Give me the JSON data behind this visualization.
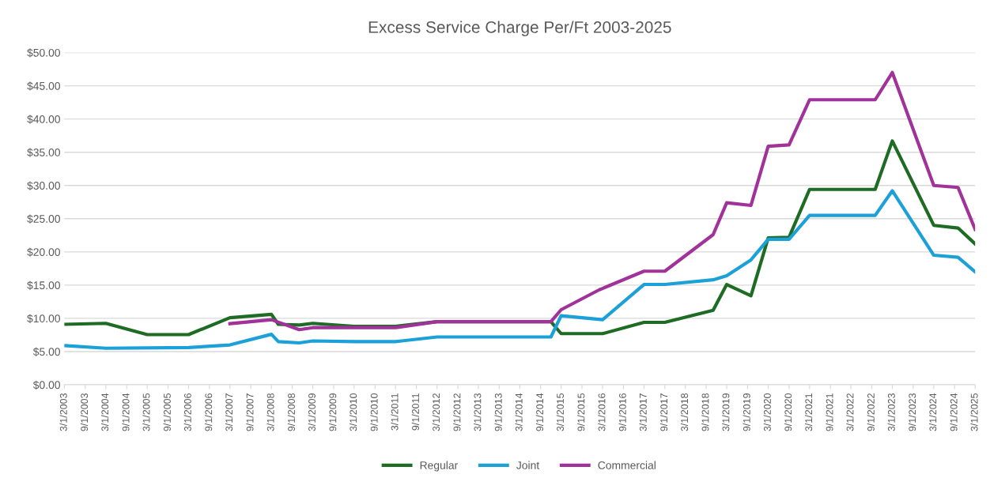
{
  "chart_data": {
    "type": "line",
    "title": "Excess Service Charge Per/Ft 2003-2025",
    "xlim": [
      "2003-03-01",
      "2025-03-01"
    ],
    "xticks": [
      {
        "value": "2003-03-01",
        "label": "3/1/2003"
      },
      {
        "value": "2003-09-01",
        "label": "9/1/2003"
      },
      {
        "value": "2004-03-01",
        "label": "3/1/2004"
      },
      {
        "value": "2004-09-01",
        "label": "9/1/2004"
      },
      {
        "value": "2005-03-01",
        "label": "3/1/2005"
      },
      {
        "value": "2005-09-01",
        "label": "9/1/2005"
      },
      {
        "value": "2006-03-01",
        "label": "3/1/2006"
      },
      {
        "value": "2006-09-01",
        "label": "9/1/2006"
      },
      {
        "value": "2007-03-01",
        "label": "3/1/2007"
      },
      {
        "value": "2007-09-01",
        "label": "9/1/2007"
      },
      {
        "value": "2008-03-01",
        "label": "3/1/2008"
      },
      {
        "value": "2008-09-01",
        "label": "9/1/2008"
      },
      {
        "value": "2009-03-01",
        "label": "3/1/2009"
      },
      {
        "value": "2009-09-01",
        "label": "9/1/2009"
      },
      {
        "value": "2010-03-01",
        "label": "3/1/2010"
      },
      {
        "value": "2010-09-01",
        "label": "9/1/2010"
      },
      {
        "value": "2011-03-01",
        "label": "3/1/2011"
      },
      {
        "value": "2011-09-01",
        "label": "9/1/2011"
      },
      {
        "value": "2012-03-01",
        "label": "3/1/2012"
      },
      {
        "value": "2012-09-01",
        "label": "9/1/2012"
      },
      {
        "value": "2013-03-01",
        "label": "3/1/2013"
      },
      {
        "value": "2013-09-01",
        "label": "9/1/2013"
      },
      {
        "value": "2014-03-01",
        "label": "3/1/2014"
      },
      {
        "value": "2014-09-01",
        "label": "9/1/2014"
      },
      {
        "value": "2015-03-01",
        "label": "3/1/2015"
      },
      {
        "value": "2015-09-01",
        "label": "9/1/2015"
      },
      {
        "value": "2016-03-01",
        "label": "3/1/2016"
      },
      {
        "value": "2016-09-01",
        "label": "9/1/2016"
      },
      {
        "value": "2017-03-01",
        "label": "3/1/2017"
      },
      {
        "value": "2017-09-01",
        "label": "9/1/2017"
      },
      {
        "value": "2018-03-01",
        "label": "3/1/2018"
      },
      {
        "value": "2018-09-01",
        "label": "9/1/2018"
      },
      {
        "value": "2019-03-01",
        "label": "3/1/2019"
      },
      {
        "value": "2019-09-01",
        "label": "9/1/2019"
      },
      {
        "value": "2020-03-01",
        "label": "3/1/2020"
      },
      {
        "value": "2020-09-01",
        "label": "9/1/2020"
      },
      {
        "value": "2021-03-01",
        "label": "3/1/2021"
      },
      {
        "value": "2021-09-01",
        "label": "9/1/2021"
      },
      {
        "value": "2022-03-01",
        "label": "3/1/2022"
      },
      {
        "value": "2022-09-01",
        "label": "9/1/2022"
      },
      {
        "value": "2023-03-01",
        "label": "3/1/2023"
      },
      {
        "value": "2023-09-01",
        "label": "9/1/2023"
      },
      {
        "value": "2024-03-01",
        "label": "3/1/2024"
      },
      {
        "value": "2024-09-01",
        "label": "9/1/2024"
      },
      {
        "value": "2025-03-01",
        "label": "3/1/2025"
      }
    ],
    "ylim": [
      0,
      50
    ],
    "yticks": [
      {
        "value": 0,
        "label": "$0.00"
      },
      {
        "value": 5,
        "label": "$5.00"
      },
      {
        "value": 10,
        "label": "$10.00"
      },
      {
        "value": 15,
        "label": "$15.00"
      },
      {
        "value": 20,
        "label": "$20.00"
      },
      {
        "value": 25,
        "label": "$25.00"
      },
      {
        "value": 30,
        "label": "$30.00"
      },
      {
        "value": 35,
        "label": "$35.00"
      },
      {
        "value": 40,
        "label": "$40.00"
      },
      {
        "value": 45,
        "label": "$45.00"
      },
      {
        "value": 50,
        "label": "$50.00"
      }
    ],
    "grid": "y",
    "legend": "bottom",
    "marker": "none",
    "line_style": "solid",
    "series": [
      {
        "name": "Regular",
        "color": "#1e6b24",
        "x": [
          "2003-03",
          "2004-03",
          "2005-03",
          "2006-03",
          "2007-03",
          "2008-03",
          "2008-05",
          "2008-11",
          "2009-03",
          "2010-03",
          "2011-03",
          "2012-03",
          "2014-12",
          "2015-03",
          "2016-03",
          "2017-03",
          "2017-09",
          "2018-11",
          "2019-03",
          "2019-10",
          "2020-03",
          "2020-09",
          "2021-03",
          "2022-10",
          "2023-03",
          "2024-03",
          "2024-10",
          "2025-03"
        ],
        "values": [
          9.1,
          9.25,
          7.55,
          7.55,
          10.1,
          10.6,
          9.1,
          9.0,
          9.25,
          8.8,
          8.8,
          9.5,
          9.5,
          7.7,
          7.7,
          9.4,
          9.4,
          11.2,
          15.1,
          13.4,
          22.1,
          22.2,
          29.4,
          29.4,
          36.7,
          24.0,
          23.6,
          21.2
        ]
      },
      {
        "name": "Joint",
        "color": "#1ba1d8",
        "x": [
          "2003-03",
          "2004-03",
          "2006-03",
          "2007-03",
          "2008-03",
          "2008-05",
          "2008-11",
          "2009-03",
          "2010-03",
          "2011-03",
          "2012-03",
          "2014-12",
          "2015-03",
          "2016-03",
          "2017-03",
          "2017-09",
          "2018-11",
          "2019-03",
          "2019-10",
          "2020-03",
          "2020-09",
          "2021-03",
          "2022-10",
          "2023-03",
          "2024-03",
          "2024-10",
          "2025-03"
        ],
        "values": [
          5.9,
          5.5,
          5.6,
          6.0,
          7.6,
          6.5,
          6.3,
          6.6,
          6.5,
          6.5,
          7.2,
          7.2,
          10.4,
          9.8,
          15.1,
          15.1,
          15.8,
          16.4,
          18.8,
          21.9,
          21.9,
          25.5,
          25.5,
          29.2,
          19.5,
          19.2,
          17.0
        ]
      },
      {
        "name": "Commercial",
        "color": "#a0329a",
        "x": [
          "2007-03",
          "2008-03",
          "2008-11",
          "2009-03",
          "2010-03",
          "2011-03",
          "2012-03",
          "2014-12",
          "2015-03",
          "2016-02",
          "2016-03",
          "2017-03",
          "2017-09",
          "2018-11",
          "2019-03",
          "2019-10",
          "2020-03",
          "2020-09",
          "2021-03",
          "2022-10",
          "2023-03",
          "2024-03",
          "2024-10",
          "2025-03"
        ],
        "values": [
          9.2,
          9.8,
          8.3,
          8.6,
          8.6,
          8.6,
          9.5,
          9.5,
          11.3,
          14.3,
          14.5,
          17.1,
          17.1,
          22.6,
          27.4,
          27.0,
          35.9,
          36.1,
          42.9,
          42.9,
          47.0,
          30.0,
          29.7,
          23.4
        ]
      }
    ]
  }
}
